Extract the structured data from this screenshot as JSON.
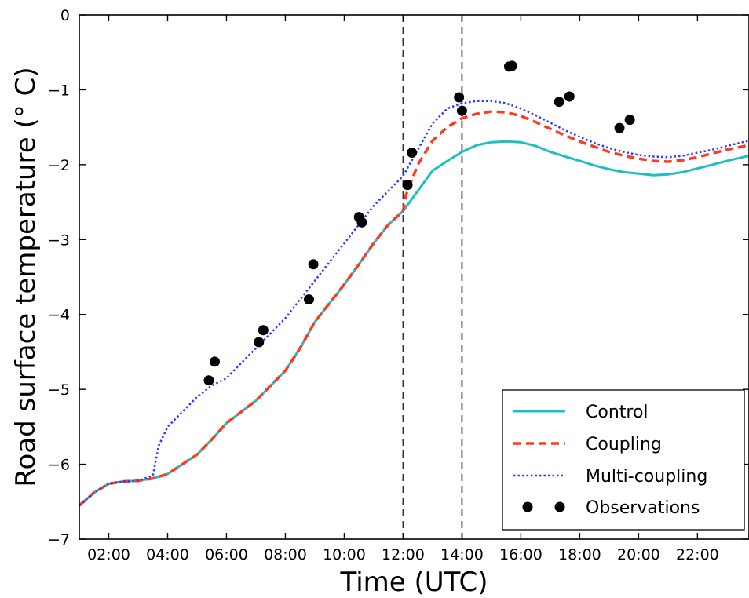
{
  "chart_data": {
    "type": "line",
    "xlabel": "Time (UTC)",
    "ylabel": "Road surface temperature ($^\\circ$C)",
    "ylabel_display": "Road surface temperature (° C)",
    "xlim": [
      1.0,
      23.75
    ],
    "ylim": [
      -7,
      0
    ],
    "x_unit": "hour",
    "x_ticks": [
      2,
      4,
      6,
      8,
      10,
      12,
      14,
      16,
      18,
      20,
      22
    ],
    "x_tick_labels": [
      "02:00",
      "04:00",
      "06:00",
      "08:00",
      "10:00",
      "12:00",
      "14:00",
      "16:00",
      "18:00",
      "20:00",
      "22:00"
    ],
    "y_ticks": [
      0,
      -1,
      -2,
      -3,
      -4,
      -5,
      -6,
      -7
    ],
    "y_tick_labels": [
      "0",
      "−1",
      "−2",
      "−3",
      "−4",
      "−5",
      "−6",
      "−7"
    ],
    "vlines": [
      12.0,
      14.0
    ],
    "legend": {
      "placement": "bottom-right",
      "entries": [
        "Control",
        "Coupling",
        "Multi-coupling",
        "Observations"
      ]
    },
    "grid": false,
    "colors": {
      "control": "#1fbfbf",
      "coupling": "#ff3b1f",
      "multi": "#2b3bff",
      "obs": "#000000",
      "vline": "#333333"
    },
    "series": [
      {
        "name": "Control",
        "style": "solid",
        "x": [
          1.0,
          1.5,
          2.0,
          2.5,
          3.0,
          3.5,
          4.0,
          4.5,
          5.0,
          5.5,
          6.0,
          6.5,
          7.0,
          7.5,
          8.0,
          8.5,
          9.0,
          9.5,
          10.0,
          10.5,
          11.0,
          11.5,
          12.0,
          12.5,
          13.0,
          13.5,
          14.0,
          14.5,
          15.0,
          15.5,
          16.0,
          16.5,
          17.0,
          17.5,
          18.0,
          18.5,
          19.0,
          19.5,
          20.0,
          20.5,
          21.0,
          21.5,
          22.0,
          22.5,
          23.0,
          23.75
        ],
        "y": [
          -6.55,
          -6.38,
          -6.26,
          -6.23,
          -6.22,
          -6.19,
          -6.13,
          -6.0,
          -5.87,
          -5.67,
          -5.45,
          -5.3,
          -5.15,
          -4.95,
          -4.75,
          -4.45,
          -4.1,
          -3.85,
          -3.6,
          -3.33,
          -3.05,
          -2.8,
          -2.62,
          -2.35,
          -2.08,
          -1.95,
          -1.83,
          -1.74,
          -1.7,
          -1.69,
          -1.7,
          -1.75,
          -1.83,
          -1.89,
          -1.95,
          -2.01,
          -2.06,
          -2.1,
          -2.12,
          -2.14,
          -2.13,
          -2.1,
          -2.05,
          -2.0,
          -1.95,
          -1.88
        ]
      },
      {
        "name": "Coupling",
        "style": "dashed",
        "x": [
          1.0,
          1.5,
          2.0,
          2.5,
          3.0,
          3.5,
          4.0,
          4.5,
          5.0,
          5.5,
          6.0,
          6.5,
          7.0,
          7.5,
          8.0,
          8.5,
          9.0,
          9.5,
          10.0,
          10.5,
          11.0,
          11.5,
          12.0,
          12.1,
          12.5,
          13.0,
          13.5,
          14.0,
          14.5,
          15.0,
          15.5,
          16.0,
          16.5,
          17.0,
          17.5,
          18.0,
          18.5,
          19.0,
          19.5,
          20.0,
          20.5,
          21.0,
          21.5,
          22.0,
          22.5,
          23.0,
          23.75
        ],
        "y": [
          -6.55,
          -6.38,
          -6.26,
          -6.23,
          -6.22,
          -6.19,
          -6.13,
          -6.0,
          -5.87,
          -5.67,
          -5.45,
          -5.3,
          -5.15,
          -4.95,
          -4.75,
          -4.45,
          -4.1,
          -3.85,
          -3.6,
          -3.33,
          -3.05,
          -2.8,
          -2.62,
          -2.4,
          -2.0,
          -1.68,
          -1.5,
          -1.38,
          -1.32,
          -1.29,
          -1.3,
          -1.35,
          -1.43,
          -1.52,
          -1.61,
          -1.69,
          -1.76,
          -1.83,
          -1.88,
          -1.92,
          -1.95,
          -1.96,
          -1.94,
          -1.9,
          -1.85,
          -1.8,
          -1.74
        ]
      },
      {
        "name": "Multi-coupling",
        "style": "dotted",
        "x": [
          1.0,
          1.5,
          2.0,
          2.5,
          3.0,
          3.5,
          3.7,
          4.0,
          4.5,
          5.0,
          5.5,
          6.0,
          6.5,
          7.0,
          7.5,
          8.0,
          8.5,
          9.0,
          9.5,
          10.0,
          10.5,
          11.0,
          11.5,
          12.0,
          12.5,
          13.0,
          13.5,
          14.0,
          14.5,
          15.0,
          15.5,
          16.0,
          16.5,
          17.0,
          17.5,
          18.0,
          18.5,
          19.0,
          19.5,
          20.0,
          20.5,
          21.0,
          21.5,
          22.0,
          22.5,
          23.0,
          23.75
        ],
        "y": [
          -6.55,
          -6.38,
          -6.26,
          -6.23,
          -6.22,
          -6.15,
          -5.75,
          -5.5,
          -5.3,
          -5.1,
          -4.95,
          -4.85,
          -4.65,
          -4.45,
          -4.25,
          -4.05,
          -3.8,
          -3.55,
          -3.3,
          -3.05,
          -2.8,
          -2.55,
          -2.35,
          -2.15,
          -1.8,
          -1.45,
          -1.25,
          -1.18,
          -1.15,
          -1.15,
          -1.18,
          -1.25,
          -1.34,
          -1.44,
          -1.54,
          -1.63,
          -1.71,
          -1.78,
          -1.83,
          -1.87,
          -1.89,
          -1.9,
          -1.88,
          -1.84,
          -1.8,
          -1.75,
          -1.68
        ]
      },
      {
        "name": "Observations",
        "style": "markers",
        "x": [
          5.4,
          5.6,
          7.1,
          7.25,
          8.8,
          8.95,
          10.5,
          10.6,
          12.15,
          12.3,
          13.9,
          14.0,
          15.6,
          15.7,
          17.3,
          17.65,
          19.35,
          19.7
        ],
        "y": [
          -4.88,
          -4.63,
          -4.37,
          -4.21,
          -3.8,
          -3.33,
          -2.7,
          -2.77,
          -2.27,
          -1.84,
          -1.1,
          -1.28,
          -0.69,
          -0.68,
          -1.16,
          -1.09,
          -1.51,
          -1.4
        ]
      }
    ]
  }
}
